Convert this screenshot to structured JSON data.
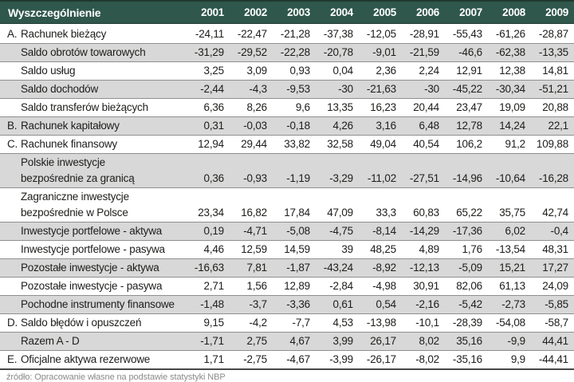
{
  "colors": {
    "header_bg": "#2f574b",
    "header_text": "#ffffff",
    "stripe_gray": "#d8d8d8",
    "row_border": "#8f8f8f",
    "bottom_border": "#474747",
    "body_text": "#1d1d1b",
    "source_text": "#8a8a8a"
  },
  "table": {
    "header": {
      "label": "Wyszczególnienie",
      "years": [
        "2001",
        "2002",
        "2003",
        "2004",
        "2005",
        "2006",
        "2007",
        "2008",
        "2009"
      ]
    },
    "rows": [
      {
        "letter": "A.",
        "label": "Rachunek bieżący",
        "values": [
          "-24,11",
          "-22,47",
          "-21,28",
          "-37,38",
          "-12,05",
          "-28,91",
          "-55,43",
          "-61,26",
          "-28,87"
        ]
      },
      {
        "letter": "",
        "label": "Saldo obrotów towarowych",
        "values": [
          "-31,29",
          "-29,52",
          "-22,28",
          "-20,78",
          "-9,01",
          "-21,59",
          "-46,6",
          "-62,38",
          "-13,35"
        ]
      },
      {
        "letter": "",
        "label": "Saldo usług",
        "values": [
          "3,25",
          "3,09",
          "0,93",
          "0,04",
          "2,36",
          "2,24",
          "12,91",
          "12,38",
          "14,81"
        ]
      },
      {
        "letter": "",
        "label": "Saldo dochodów",
        "values": [
          "-2,44",
          "-4,3",
          "-9,53",
          "-30",
          "-21,63",
          "-30",
          "-45,22",
          "-30,34",
          "-51,21"
        ]
      },
      {
        "letter": "",
        "label": "Saldo transferów bieżących",
        "values": [
          "6,36",
          "8,26",
          "9,6",
          "13,35",
          "16,23",
          "20,44",
          "23,47",
          "19,09",
          "20,88"
        ]
      },
      {
        "letter": "B.",
        "label": "Rachunek kapitałowy",
        "values": [
          "0,31",
          "-0,03",
          "-0,18",
          "4,26",
          "3,16",
          "6,48",
          "12,78",
          "14,24",
          "22,1"
        ]
      },
      {
        "letter": "C.",
        "label": "Rachunek finansowy",
        "values": [
          "12,94",
          "29,44",
          "33,82",
          "32,58",
          "49,04",
          "40,54",
          "106,2",
          "91,2",
          "109,88"
        ]
      },
      {
        "letter": "",
        "label": "Polskie inwestycje\nbezpośrednie za granicą",
        "values": [
          "0,36",
          "-0,93",
          "-1,19",
          "-3,29",
          "-11,02",
          "-27,51",
          "-14,96",
          "-10,64",
          "-16,28"
        ]
      },
      {
        "letter": "",
        "label": "Zagraniczne inwestycje\nbezpośrednie w Polsce",
        "values": [
          "23,34",
          "16,82",
          "17,84",
          "47,09",
          "33,3",
          "60,83",
          "65,22",
          "35,75",
          "42,74"
        ]
      },
      {
        "letter": "",
        "label": "Inwestycje portfelowe - aktywa",
        "values": [
          "0,19",
          "-4,71",
          "-5,08",
          "-4,75",
          "-8,14",
          "-14,29",
          "-17,36",
          "6,02",
          "-0,4"
        ]
      },
      {
        "letter": "",
        "label": "Inwestycje portfelowe - pasywa",
        "values": [
          "4,46",
          "12,59",
          "14,59",
          "39",
          "48,25",
          "4,89",
          "1,76",
          "-13,54",
          "48,31"
        ]
      },
      {
        "letter": "",
        "label": "Pozostałe inwestycje - aktywa",
        "values": [
          "-16,63",
          "7,81",
          "-1,87",
          "-43,24",
          "-8,92",
          "-12,13",
          "-5,09",
          "15,21",
          "17,27"
        ]
      },
      {
        "letter": "",
        "label": "Pozostałe inwestycje - pasywa",
        "values": [
          "2,71",
          "1,56",
          "12,89",
          "-2,84",
          "-4,98",
          "30,91",
          "82,06",
          "61,13",
          "24,09"
        ]
      },
      {
        "letter": "",
        "label": "Pochodne instrumenty finansowe",
        "values": [
          "-1,48",
          "-3,7",
          "-3,36",
          "0,61",
          "0,54",
          "-2,16",
          "-5,42",
          "-2,73",
          "-5,85"
        ]
      },
      {
        "letter": "D.",
        "label": "Saldo błędów i opuszczeń",
        "values": [
          "9,15",
          "-4,2",
          "-7,7",
          "4,53",
          "-13,98",
          "-10,1",
          "-28,39",
          "-54,08",
          "-58,7"
        ]
      },
      {
        "letter": "",
        "label": "Razem A - D",
        "values": [
          "-1,71",
          "2,75",
          "4,67",
          "3,99",
          "26,17",
          "8,02",
          "35,16",
          "-9,9",
          "44,41"
        ]
      },
      {
        "letter": "E.",
        "label": "Oficjalne aktywa rezerwowe",
        "values": [
          "1,71",
          "-2,75",
          "-4,67",
          "-3,99",
          "-26,17",
          "-8,02",
          "-35,16",
          "9,9",
          "-44,41"
        ]
      }
    ],
    "source": "źródło: Opracowanie własne na podstawie statystyki NBP"
  }
}
